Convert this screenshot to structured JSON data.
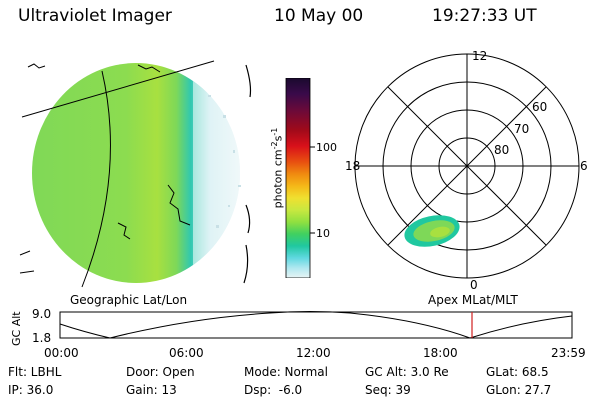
{
  "header": {
    "instrument": "Ultraviolet Imager",
    "date": "10 May 00",
    "time": "19:27:33 UT"
  },
  "colorbar": {
    "label": "photon cm^-2 s^-1",
    "tick_labels": [
      "100",
      "10"
    ],
    "colors": [
      "#1a0a2e",
      "#3a0a4a",
      "#6a0a3a",
      "#a00a1a",
      "#d8101a",
      "#e85010",
      "#f08a10",
      "#f5b818",
      "#f0e030",
      "#c8e840",
      "#90e040",
      "#40d060",
      "#20c8a0",
      "#60d8e0",
      "#b0e8f0",
      "#e8f4f4"
    ]
  },
  "geo_panel": {
    "label": "Geographic Lat/Lon",
    "fill_colors": [
      "#7ed858",
      "#a8e040",
      "#30c8b0",
      "#b8e4ea"
    ]
  },
  "polar_panel": {
    "label": "Apex MLat/MLT",
    "mlt_labels": {
      "top": "12",
      "bottom": "0",
      "left": "18",
      "right": "6"
    },
    "lat_labels": [
      "60",
      "70",
      "80"
    ]
  },
  "timeline": {
    "y_axis_label": "GC Alt",
    "y_ticks": [
      "9.0",
      "1.8"
    ],
    "x_ticks": [
      "00:00",
      "06:00",
      "12:00",
      "18:00",
      "23:59"
    ],
    "marker_color": "#d02020"
  },
  "info": {
    "row1": [
      "Flt: LBHL",
      "Door: Open",
      "Mode: Normal",
      "GC Alt: 3.0 Re",
      "GLat: 68.5"
    ],
    "row2": [
      "IP: 36.0",
      "Gain: 13",
      "Dsp:  -6.0",
      "Seq: 39",
      "GLon: 27.7"
    ]
  }
}
